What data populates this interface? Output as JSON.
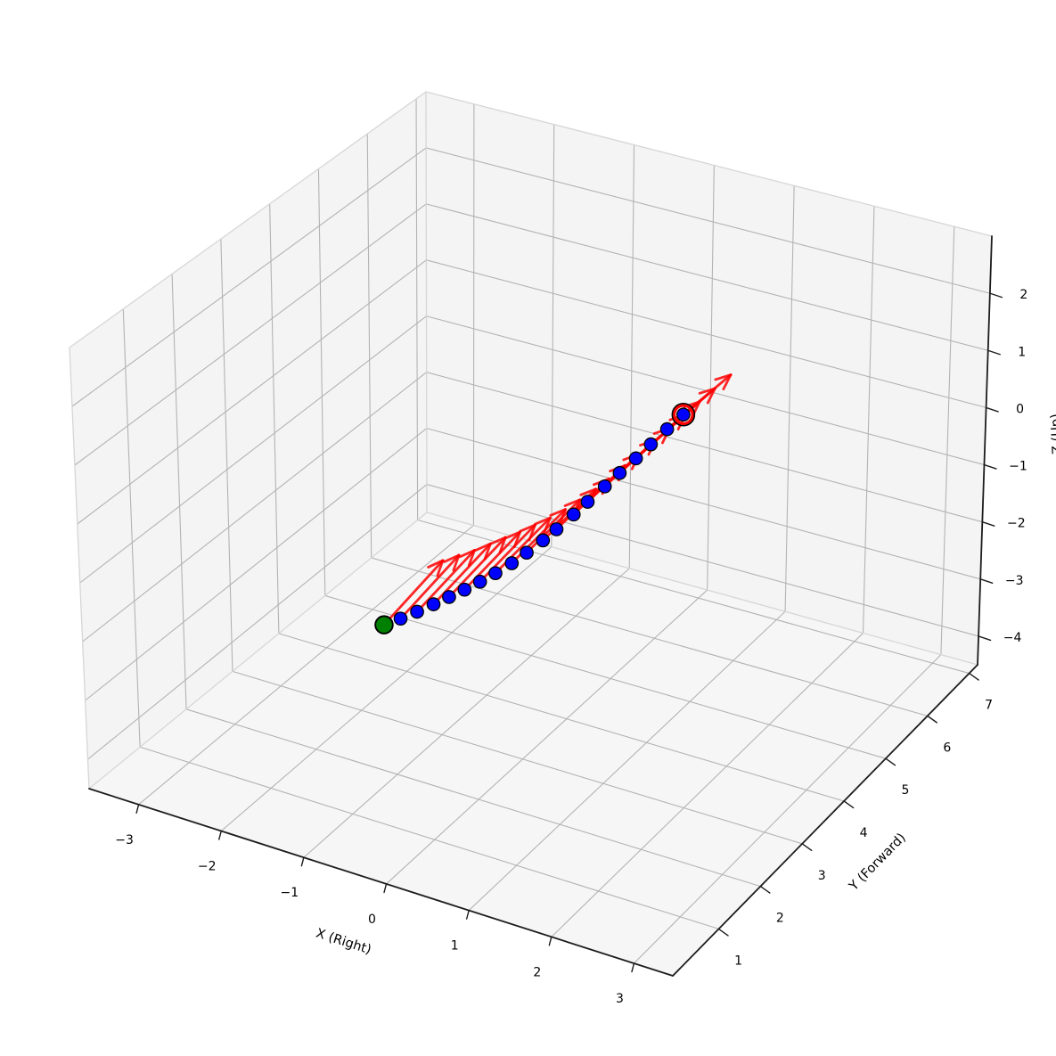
{
  "app": {
    "background": "#ffffff"
  },
  "chart_data": {
    "type": "scatter",
    "projection": "3d",
    "title": "",
    "grid": true,
    "legend": false,
    "axes": {
      "x": {
        "label": "X (Right)",
        "ticks": [
          -3,
          -2,
          -1,
          0,
          1,
          2,
          3
        ],
        "lim": [
          -3.6,
          3.47
        ]
      },
      "y": {
        "label": "Y (Forward)",
        "ticks": [
          1,
          2,
          3,
          4,
          5,
          6,
          7
        ],
        "lim": [
          -0.1,
          7.2
        ]
      },
      "z": {
        "label": "Z (Up)",
        "ticks": [
          -4,
          -3,
          -2,
          -1,
          0,
          1,
          2
        ],
        "lim": [
          -4.5,
          3.0
        ]
      }
    },
    "series": [
      {
        "name": "trajectory-points",
        "kind": "scatter3d",
        "marker": "circle",
        "color": "#0000ff",
        "edge_color": "#000000",
        "x": [
          0,
          0,
          0,
          0,
          0,
          0,
          0,
          0,
          0,
          0,
          0,
          0,
          0,
          0,
          0,
          0,
          0,
          0,
          0,
          0
        ],
        "y": [
          0.0,
          0.36,
          0.72,
          1.08,
          1.42,
          1.76,
          2.1,
          2.44,
          2.8,
          3.13,
          3.49,
          3.79,
          4.17,
          4.48,
          4.86,
          5.19,
          5.55,
          5.88,
          6.24,
          6.6
        ],
        "z": [
          -0.2,
          -0.33,
          -0.45,
          -0.56,
          -0.66,
          -0.76,
          -0.85,
          -0.93,
          -1.0,
          -1.04,
          -1.07,
          -1.08,
          -1.08,
          -1.07,
          -1.06,
          -1.05,
          -1.04,
          -1.02,
          -1.0,
          -0.99
        ]
      },
      {
        "name": "heading-arrows",
        "kind": "quiver3d",
        "color": "#ff0000",
        "dx": [
          0,
          0,
          0,
          0,
          0,
          0,
          0,
          0,
          0,
          0,
          0,
          0,
          0,
          0,
          0,
          0,
          0,
          0,
          0,
          0
        ],
        "dy": [
          1.3,
          1.29,
          1.27,
          1.26,
          1.25,
          1.23,
          1.22,
          1.21,
          1.19,
          1.18,
          1.17,
          1.16,
          1.14,
          1.13,
          1.12,
          1.1,
          1.09,
          1.08,
          1.06,
          1.05
        ],
        "dz": [
          0.24,
          0.23,
          0.21,
          0.2,
          0.19,
          0.17,
          0.16,
          0.14,
          0.13,
          0.12,
          0.1,
          0.09,
          0.08,
          0.06,
          0.05,
          0.03,
          0.02,
          0.01,
          -0.01,
          -0.02
        ]
      },
      {
        "name": "start-point",
        "kind": "scatter3d",
        "marker": "circle",
        "color": "#008000",
        "edge_color": "#000000",
        "x": [
          0
        ],
        "y": [
          0.0
        ],
        "z": [
          -0.2
        ]
      },
      {
        "name": "end-highlight",
        "kind": "scatter3d",
        "marker": "ring",
        "color": "#ff0000",
        "edge_color": "#000000",
        "x": [
          0
        ],
        "y": [
          6.6
        ],
        "z": [
          -0.99
        ]
      }
    ],
    "colors": {
      "pane": "#f4f4f4",
      "pane_bottom": "#f6f6f6",
      "pane_edge": "#d6d6d6",
      "grid": "#b3b3b3",
      "axis_line": "#1c1c1c",
      "tick_text": "#000000",
      "point": "#0000ff",
      "arrow": "#ff0000",
      "start": "#008000",
      "end_ring": "#ff0000"
    }
  }
}
